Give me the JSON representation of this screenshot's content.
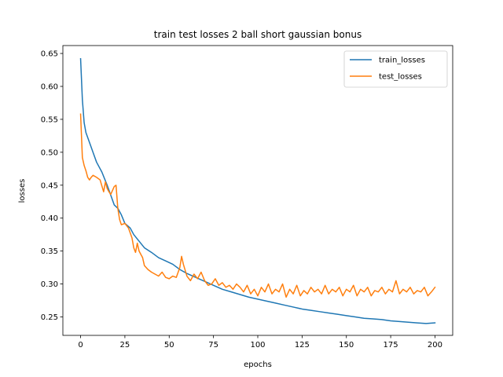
{
  "chart_data": {
    "type": "line",
    "title": "train test losses 2 ball short gaussian bonus",
    "xlabel": "epochs",
    "ylabel": "losses",
    "xlim": [
      -10,
      210
    ],
    "ylim": [
      0.222,
      0.662
    ],
    "xticks": [
      0,
      25,
      50,
      75,
      100,
      125,
      150,
      175,
      200
    ],
    "yticks": [
      0.25,
      0.3,
      0.35,
      0.4,
      0.45,
      0.5,
      0.55,
      0.6,
      0.65
    ],
    "grid": false,
    "legend_position": "top-right",
    "series": [
      {
        "name": "train_losses",
        "color": "#1f77b4",
        "points": [
          [
            0,
            0.642
          ],
          [
            1,
            0.58
          ],
          [
            2,
            0.545
          ],
          [
            3,
            0.53
          ],
          [
            5,
            0.515
          ],
          [
            7,
            0.5
          ],
          [
            9,
            0.485
          ],
          [
            12,
            0.47
          ],
          [
            15,
            0.45
          ],
          [
            17,
            0.435
          ],
          [
            19,
            0.42
          ],
          [
            21,
            0.415
          ],
          [
            23,
            0.405
          ],
          [
            25,
            0.392
          ],
          [
            28,
            0.385
          ],
          [
            30,
            0.375
          ],
          [
            33,
            0.365
          ],
          [
            36,
            0.355
          ],
          [
            40,
            0.348
          ],
          [
            44,
            0.34
          ],
          [
            48,
            0.335
          ],
          [
            52,
            0.33
          ],
          [
            56,
            0.322
          ],
          [
            60,
            0.316
          ],
          [
            65,
            0.31
          ],
          [
            70,
            0.304
          ],
          [
            75,
            0.298
          ],
          [
            80,
            0.292
          ],
          [
            85,
            0.288
          ],
          [
            90,
            0.284
          ],
          [
            95,
            0.28
          ],
          [
            100,
            0.277
          ],
          [
            105,
            0.274
          ],
          [
            110,
            0.271
          ],
          [
            115,
            0.268
          ],
          [
            120,
            0.265
          ],
          [
            125,
            0.262
          ],
          [
            130,
            0.26
          ],
          [
            135,
            0.258
          ],
          [
            140,
            0.256
          ],
          [
            145,
            0.254
          ],
          [
            150,
            0.252
          ],
          [
            155,
            0.25
          ],
          [
            160,
            0.248
          ],
          [
            165,
            0.247
          ],
          [
            170,
            0.246
          ],
          [
            175,
            0.244
          ],
          [
            180,
            0.243
          ],
          [
            185,
            0.242
          ],
          [
            190,
            0.241
          ],
          [
            195,
            0.24
          ],
          [
            200,
            0.241
          ]
        ]
      },
      {
        "name": "test_losses",
        "color": "#ff7f0e",
        "points": [
          [
            0,
            0.558
          ],
          [
            1,
            0.492
          ],
          [
            2,
            0.48
          ],
          [
            3,
            0.472
          ],
          [
            4,
            0.462
          ],
          [
            5,
            0.458
          ],
          [
            6,
            0.462
          ],
          [
            7,
            0.465
          ],
          [
            9,
            0.462
          ],
          [
            11,
            0.458
          ],
          [
            13,
            0.44
          ],
          [
            14,
            0.455
          ],
          [
            15,
            0.445
          ],
          [
            16,
            0.44
          ],
          [
            17,
            0.436
          ],
          [
            19,
            0.448
          ],
          [
            20,
            0.45
          ],
          [
            21,
            0.415
          ],
          [
            22,
            0.398
          ],
          [
            23,
            0.39
          ],
          [
            25,
            0.392
          ],
          [
            27,
            0.385
          ],
          [
            29,
            0.37
          ],
          [
            30,
            0.355
          ],
          [
            31,
            0.348
          ],
          [
            32,
            0.362
          ],
          [
            33,
            0.35
          ],
          [
            34,
            0.345
          ],
          [
            35,
            0.34
          ],
          [
            36,
            0.328
          ],
          [
            38,
            0.322
          ],
          [
            40,
            0.318
          ],
          [
            42,
            0.315
          ],
          [
            44,
            0.312
          ],
          [
            46,
            0.318
          ],
          [
            48,
            0.31
          ],
          [
            50,
            0.308
          ],
          [
            52,
            0.312
          ],
          [
            54,
            0.31
          ],
          [
            56,
            0.325
          ],
          [
            57,
            0.342
          ],
          [
            58,
            0.33
          ],
          [
            60,
            0.312
          ],
          [
            62,
            0.305
          ],
          [
            64,
            0.315
          ],
          [
            66,
            0.308
          ],
          [
            68,
            0.318
          ],
          [
            70,
            0.305
          ],
          [
            72,
            0.298
          ],
          [
            74,
            0.3
          ],
          [
            76,
            0.308
          ],
          [
            78,
            0.298
          ],
          [
            80,
            0.302
          ],
          [
            82,
            0.295
          ],
          [
            84,
            0.298
          ],
          [
            86,
            0.292
          ],
          [
            88,
            0.3
          ],
          [
            90,
            0.295
          ],
          [
            92,
            0.288
          ],
          [
            94,
            0.298
          ],
          [
            96,
            0.285
          ],
          [
            98,
            0.292
          ],
          [
            100,
            0.282
          ],
          [
            102,
            0.295
          ],
          [
            104,
            0.288
          ],
          [
            106,
            0.3
          ],
          [
            108,
            0.285
          ],
          [
            110,
            0.292
          ],
          [
            112,
            0.288
          ],
          [
            114,
            0.3
          ],
          [
            116,
            0.28
          ],
          [
            118,
            0.292
          ],
          [
            120,
            0.285
          ],
          [
            122,
            0.298
          ],
          [
            124,
            0.282
          ],
          [
            126,
            0.29
          ],
          [
            128,
            0.285
          ],
          [
            130,
            0.295
          ],
          [
            132,
            0.288
          ],
          [
            134,
            0.292
          ],
          [
            136,
            0.285
          ],
          [
            138,
            0.298
          ],
          [
            140,
            0.285
          ],
          [
            142,
            0.292
          ],
          [
            144,
            0.288
          ],
          [
            146,
            0.295
          ],
          [
            148,
            0.282
          ],
          [
            150,
            0.292
          ],
          [
            152,
            0.288
          ],
          [
            154,
            0.298
          ],
          [
            156,
            0.282
          ],
          [
            158,
            0.292
          ],
          [
            160,
            0.288
          ],
          [
            162,
            0.295
          ],
          [
            164,
            0.282
          ],
          [
            166,
            0.29
          ],
          [
            168,
            0.288
          ],
          [
            170,
            0.295
          ],
          [
            172,
            0.285
          ],
          [
            174,
            0.292
          ],
          [
            176,
            0.288
          ],
          [
            178,
            0.305
          ],
          [
            180,
            0.285
          ],
          [
            182,
            0.292
          ],
          [
            184,
            0.288
          ],
          [
            186,
            0.295
          ],
          [
            188,
            0.285
          ],
          [
            190,
            0.29
          ],
          [
            192,
            0.288
          ],
          [
            194,
            0.295
          ],
          [
            196,
            0.282
          ],
          [
            198,
            0.288
          ],
          [
            200,
            0.295
          ]
        ]
      }
    ]
  }
}
